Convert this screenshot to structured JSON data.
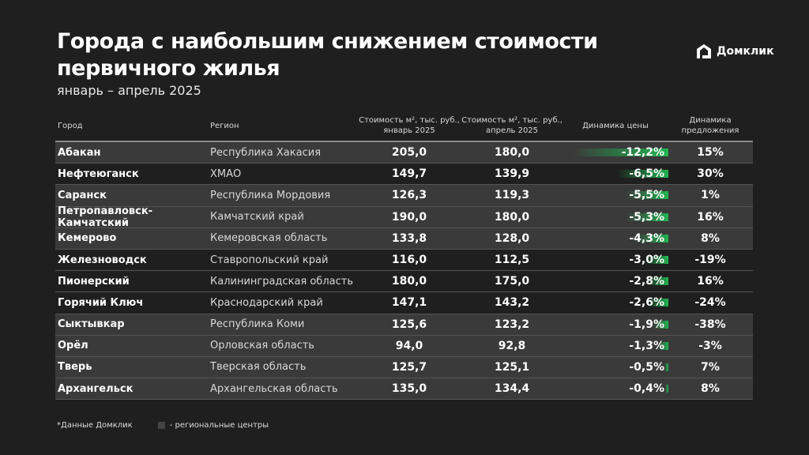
{
  "title": "Города с наибольшим снижением стоимости первичного жилья",
  "subtitle": "январь – апрель 2025",
  "logo": "Домклик",
  "colors": {
    "background": "#1f1f1f",
    "regional_center_row": "#3a3a3a",
    "bar": "#22b450"
  },
  "chart_data": {
    "type": "table",
    "columns": [
      "Город",
      "Регион",
      "Стоимость м², тыс. руб., январь 2025",
      "Стоимость м², тыс. руб., апрель 2025",
      "Динамика цены",
      "Динамика предложения"
    ],
    "header": {
      "city": "Город",
      "region": "Регион",
      "jan_1": "Стоимость м², тыс. руб.,",
      "jan_2": "январь 2025",
      "apr_1": "Стоимость м², тыс. руб.,",
      "apr_2": "апрель 2025",
      "price_dyn": "Динамика цены",
      "supply_1": "Динамика",
      "supply_2": "предложения"
    },
    "rows": [
      {
        "city": "Абакан",
        "region": "Республика Хакасия",
        "jan": "205,0",
        "apr": "180,0",
        "price": "-12,2%",
        "price_value": -12.2,
        "supply": "15%",
        "regional_center": true
      },
      {
        "city": "Нефтеюганск",
        "region": "ХМАО",
        "jan": "149,7",
        "apr": "139,9",
        "price": "-6,5%",
        "price_value": -6.5,
        "supply": "30%",
        "regional_center": false
      },
      {
        "city": "Саранск",
        "region": "Республика Мордовия",
        "jan": "126,3",
        "apr": "119,3",
        "price": "-5,5%",
        "price_value": -5.5,
        "supply": "1%",
        "regional_center": true
      },
      {
        "city": "Петропавловск-Камчатский",
        "region": "Камчатский край",
        "jan": "190,0",
        "apr": "180,0",
        "price": "-5,3%",
        "price_value": -5.3,
        "supply": "16%",
        "regional_center": true
      },
      {
        "city": "Кемерово",
        "region": "Кемеровская область",
        "jan": "133,8",
        "apr": "128,0",
        "price": "-4,3%",
        "price_value": -4.3,
        "supply": "8%",
        "regional_center": true
      },
      {
        "city": "Железноводск",
        "region": "Ставропольский край",
        "jan": "116,0",
        "apr": "112,5",
        "price": "-3,0%",
        "price_value": -3.0,
        "supply": "-19%",
        "regional_center": false
      },
      {
        "city": "Пионерский",
        "region": "Калининградская область",
        "jan": "180,0",
        "apr": "175,0",
        "price": "-2,8%",
        "price_value": -2.8,
        "supply": "16%",
        "regional_center": false
      },
      {
        "city": "Горячий Ключ",
        "region": "Краснодарский край",
        "jan": "147,1",
        "apr": "143,2",
        "price": "-2,6%",
        "price_value": -2.6,
        "supply": "-24%",
        "regional_center": false
      },
      {
        "city": "Сыктывкар",
        "region": "Республика Коми",
        "jan": "125,6",
        "apr": "123,2",
        "price": "-1,9%",
        "price_value": -1.9,
        "supply": "-38%",
        "regional_center": true
      },
      {
        "city": "Орёл",
        "region": "Орловская область",
        "jan": "94,0",
        "apr": "92,8",
        "price": "-1,3%",
        "price_value": -1.3,
        "supply": "-3%",
        "regional_center": true
      },
      {
        "city": "Тверь",
        "region": "Тверская область",
        "jan": "125,7",
        "apr": "125,1",
        "price": "-0,5%",
        "price_value": -0.5,
        "supply": "7%",
        "regional_center": true
      },
      {
        "city": "Архангельск",
        "region": "Архангельская область",
        "jan": "135,0",
        "apr": "134,4",
        "price": "-0,4%",
        "price_value": -0.4,
        "supply": "8%",
        "regional_center": true
      }
    ]
  },
  "footer": {
    "source": "*Данные Домклик",
    "legend": "- региональные центры"
  }
}
